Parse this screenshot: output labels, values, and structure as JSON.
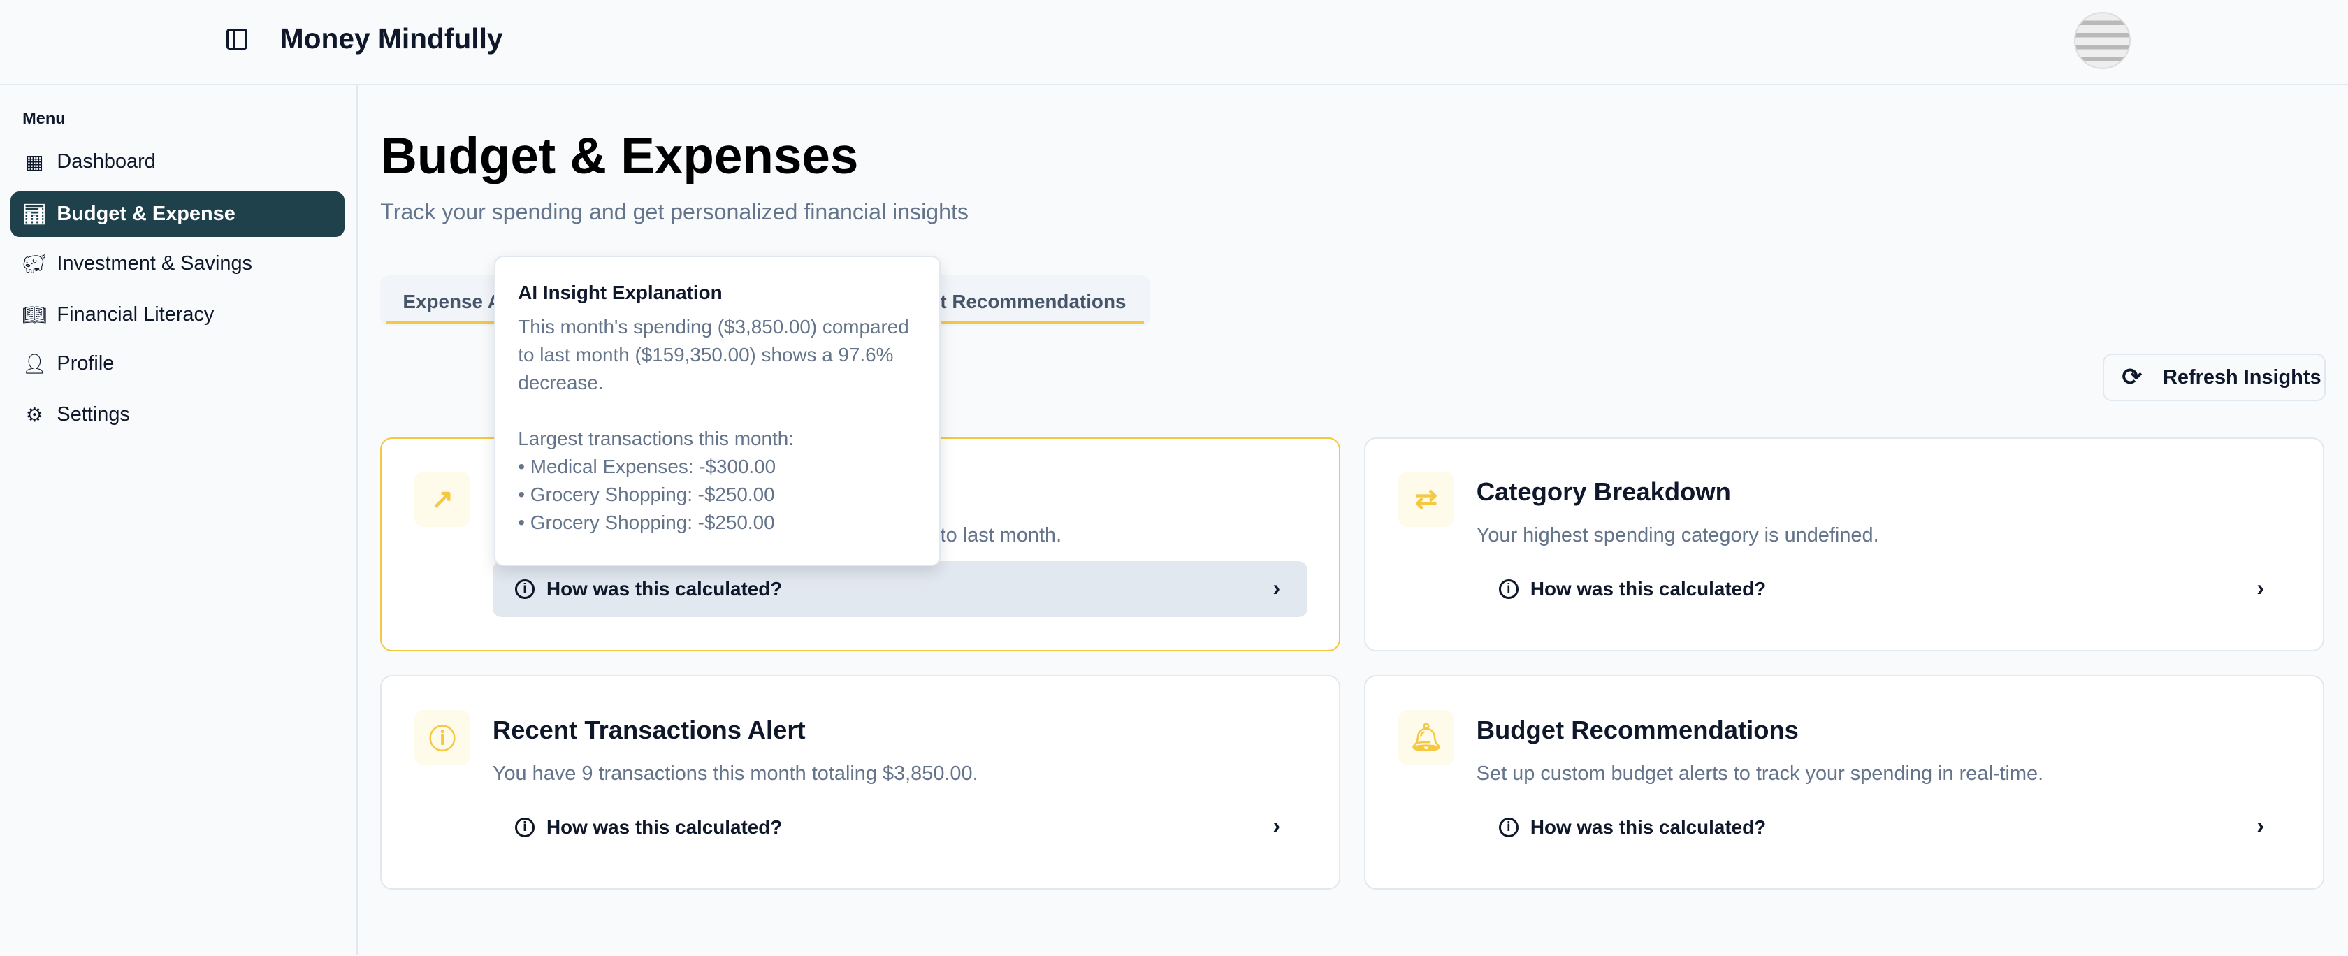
{
  "header": {
    "app_title": "Money Mindfully"
  },
  "sidebar": {
    "menu_label": "Menu",
    "items": [
      {
        "label": "Dashboard",
        "icon": "dashboard-icon"
      },
      {
        "label": "Budget & Expense",
        "icon": "bar-chart-icon",
        "active": true
      },
      {
        "label": "Investment & Savings",
        "icon": "piggy-bank-icon"
      },
      {
        "label": "Financial Literacy",
        "icon": "book-icon"
      },
      {
        "label": "Profile",
        "icon": "user-icon"
      },
      {
        "label": "Settings",
        "icon": "gear-icon"
      }
    ]
  },
  "page": {
    "title": "Budget & Expenses",
    "subtitle": "Track your spending and get personalized financial insights"
  },
  "tabs": [
    {
      "label": "Expense A"
    },
    {
      "label": "ct Recommendations"
    }
  ],
  "refresh_label": "Refresh Insights",
  "accent": "#f5c842",
  "cards": [
    {
      "title": "",
      "description": "to last month.",
      "how": "How was this calculated?",
      "icon": "trending-up-icon"
    },
    {
      "title": "Category Breakdown",
      "description": "Your highest spending category is undefined.",
      "how": "How was this calculated?",
      "icon": "repeat-icon"
    },
    {
      "title": "Recent Transactions Alert",
      "description": "You have 9 transactions this month totaling $3,850.00.",
      "how": "How was this calculated?",
      "icon": "alert-circle-icon"
    },
    {
      "title": "Budget Recommendations",
      "description": "Set up custom budget alerts to track your spending in real-time.",
      "how": "How was this calculated?",
      "icon": "bell-icon"
    }
  ],
  "tooltip": {
    "title": "AI Insight Explanation",
    "lines": [
      "This month's spending ($3,850.00) compared",
      "to last month ($159,350.00) shows a 97.6%",
      "decrease.",
      "",
      "Largest transactions this month:",
      "• Medical Expenses: -$300.00",
      "• Grocery Shopping: -$250.00",
      "• Grocery Shopping: -$250.00"
    ]
  }
}
